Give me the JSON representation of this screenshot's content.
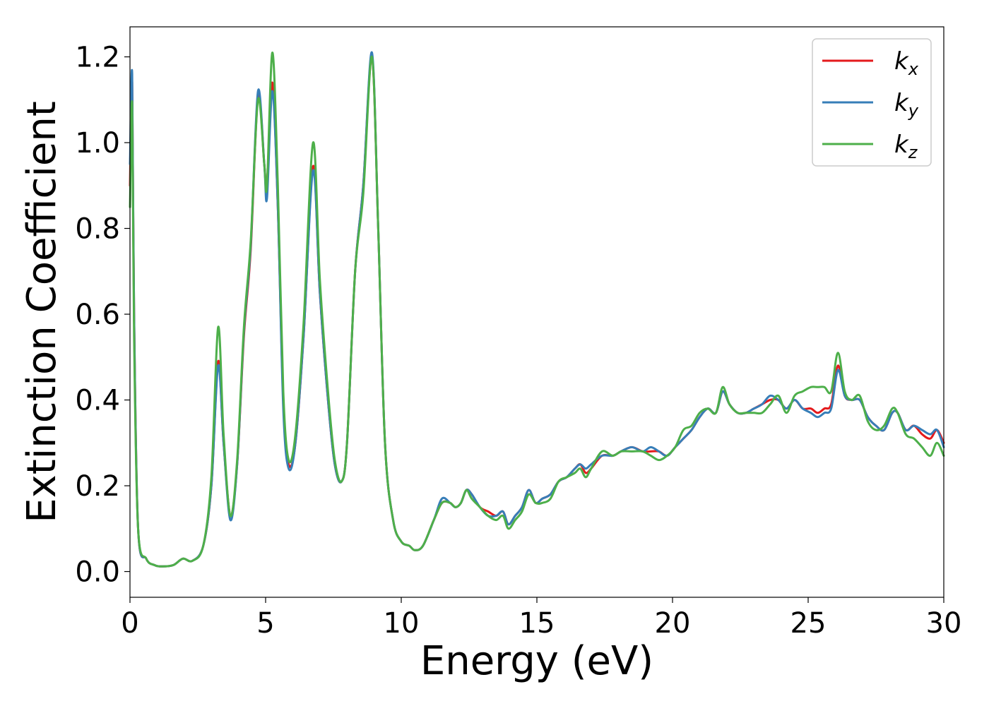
{
  "chart_data": {
    "type": "line",
    "xlabel": "Energy (eV)",
    "ylabel": "Extinction Coefficient",
    "xlim": [
      0,
      30
    ],
    "ylim": [
      -0.06,
      1.27
    ],
    "xticks": [
      0,
      5,
      10,
      15,
      20,
      25,
      30
    ],
    "xtick_labels": [
      "0",
      "5",
      "10",
      "15",
      "20",
      "25",
      "30"
    ],
    "yticks": [
      0.0,
      0.2,
      0.4,
      0.6,
      0.8,
      1.0,
      1.2
    ],
    "ytick_labels": [
      "0.0",
      "0.2",
      "0.4",
      "0.6",
      "0.8",
      "1.0",
      "1.2"
    ],
    "grid": false,
    "legend_position": "top-right",
    "series": [
      {
        "name": "k_x",
        "label_main": "k",
        "label_sub": "x",
        "color": "#e41a1c",
        "x": [
          0,
          0.08,
          0.15,
          0.3,
          0.6,
          0.9,
          1.2,
          1.6,
          1.95,
          2.3,
          2.7,
          3.0,
          3.25,
          3.45,
          3.7,
          3.95,
          4.2,
          4.45,
          4.72,
          4.95,
          5.05,
          5.25,
          5.45,
          5.65,
          5.85,
          6.1,
          6.4,
          6.75,
          7.0,
          7.3,
          7.55,
          7.8,
          8.0,
          8.3,
          8.6,
          8.92,
          9.15,
          9.4,
          9.7,
          10.0,
          10.3,
          10.5,
          10.8,
          11.2,
          11.5,
          11.8,
          12.0,
          12.2,
          12.4,
          12.6,
          12.9,
          13.2,
          13.5,
          13.75,
          13.95,
          14.2,
          14.45,
          14.7,
          14.95,
          15.2,
          15.5,
          15.8,
          16.1,
          16.4,
          16.6,
          16.8,
          17.0,
          17.4,
          17.8,
          18.1,
          18.5,
          18.9,
          19.2,
          19.5,
          19.8,
          20.1,
          20.4,
          20.7,
          21.0,
          21.3,
          21.6,
          21.85,
          22.1,
          22.4,
          22.7,
          23.0,
          23.3,
          23.6,
          23.9,
          24.2,
          24.5,
          24.8,
          25.1,
          25.35,
          25.6,
          25.85,
          26.1,
          26.35,
          26.6,
          26.9,
          27.2,
          27.5,
          27.8,
          28.1,
          28.3,
          28.6,
          28.9,
          29.2,
          29.5,
          29.75,
          30.0
        ],
        "y": [
          0.9,
          1.14,
          0.6,
          0.1,
          0.03,
          0.015,
          0.012,
          0.015,
          0.03,
          0.025,
          0.06,
          0.2,
          0.49,
          0.3,
          0.13,
          0.25,
          0.55,
          0.75,
          1.11,
          0.95,
          0.9,
          1.14,
          0.85,
          0.4,
          0.25,
          0.3,
          0.55,
          0.945,
          0.65,
          0.4,
          0.25,
          0.21,
          0.3,
          0.7,
          0.9,
          1.2,
          0.8,
          0.3,
          0.12,
          0.07,
          0.06,
          0.05,
          0.06,
          0.12,
          0.16,
          0.16,
          0.15,
          0.16,
          0.19,
          0.18,
          0.15,
          0.14,
          0.13,
          0.14,
          0.11,
          0.13,
          0.15,
          0.19,
          0.16,
          0.17,
          0.18,
          0.21,
          0.22,
          0.24,
          0.25,
          0.23,
          0.24,
          0.27,
          0.27,
          0.28,
          0.29,
          0.28,
          0.28,
          0.28,
          0.27,
          0.29,
          0.31,
          0.33,
          0.36,
          0.38,
          0.37,
          0.42,
          0.39,
          0.37,
          0.37,
          0.38,
          0.39,
          0.4,
          0.4,
          0.38,
          0.4,
          0.38,
          0.38,
          0.37,
          0.38,
          0.39,
          0.48,
          0.41,
          0.4,
          0.4,
          0.36,
          0.34,
          0.33,
          0.37,
          0.37,
          0.33,
          0.34,
          0.32,
          0.31,
          0.33,
          0.3
        ]
      },
      {
        "name": "k_y",
        "label_main": "k",
        "label_sub": "y",
        "color": "#377eb8",
        "x": [
          0,
          0.08,
          0.15,
          0.3,
          0.6,
          0.9,
          1.2,
          1.6,
          1.95,
          2.3,
          2.7,
          3.0,
          3.25,
          3.45,
          3.7,
          3.95,
          4.2,
          4.45,
          4.72,
          4.95,
          5.05,
          5.25,
          5.45,
          5.65,
          5.85,
          6.1,
          6.4,
          6.75,
          7.0,
          7.3,
          7.55,
          7.8,
          8.0,
          8.3,
          8.6,
          8.92,
          9.15,
          9.4,
          9.7,
          10.0,
          10.3,
          10.5,
          10.8,
          11.2,
          11.5,
          11.8,
          12.0,
          12.2,
          12.4,
          12.6,
          12.9,
          13.2,
          13.5,
          13.75,
          13.95,
          14.2,
          14.45,
          14.7,
          14.95,
          15.2,
          15.5,
          15.8,
          16.1,
          16.4,
          16.6,
          16.8,
          17.0,
          17.4,
          17.8,
          18.1,
          18.5,
          18.9,
          19.2,
          19.5,
          19.8,
          20.1,
          20.4,
          20.7,
          21.0,
          21.3,
          21.6,
          21.85,
          22.1,
          22.4,
          22.7,
          23.0,
          23.3,
          23.6,
          23.9,
          24.2,
          24.5,
          24.8,
          25.1,
          25.35,
          25.6,
          25.85,
          26.1,
          26.35,
          26.6,
          26.9,
          27.2,
          27.5,
          27.8,
          28.1,
          28.3,
          28.6,
          28.9,
          29.2,
          29.5,
          29.75,
          30.0
        ],
        "y": [
          0.95,
          1.16,
          0.6,
          0.1,
          0.03,
          0.015,
          0.012,
          0.015,
          0.03,
          0.025,
          0.06,
          0.2,
          0.48,
          0.3,
          0.12,
          0.25,
          0.56,
          0.76,
          1.12,
          0.95,
          0.87,
          1.12,
          0.85,
          0.38,
          0.24,
          0.3,
          0.55,
          0.935,
          0.65,
          0.4,
          0.25,
          0.21,
          0.3,
          0.7,
          0.9,
          1.21,
          0.8,
          0.3,
          0.12,
          0.07,
          0.06,
          0.05,
          0.06,
          0.12,
          0.17,
          0.16,
          0.15,
          0.16,
          0.19,
          0.18,
          0.15,
          0.13,
          0.13,
          0.14,
          0.11,
          0.13,
          0.15,
          0.19,
          0.16,
          0.17,
          0.18,
          0.21,
          0.22,
          0.24,
          0.25,
          0.24,
          0.25,
          0.27,
          0.27,
          0.28,
          0.29,
          0.28,
          0.29,
          0.28,
          0.27,
          0.29,
          0.31,
          0.33,
          0.36,
          0.38,
          0.37,
          0.42,
          0.39,
          0.37,
          0.37,
          0.38,
          0.39,
          0.41,
          0.4,
          0.38,
          0.4,
          0.38,
          0.37,
          0.36,
          0.37,
          0.38,
          0.47,
          0.41,
          0.4,
          0.4,
          0.36,
          0.34,
          0.33,
          0.37,
          0.37,
          0.33,
          0.34,
          0.33,
          0.32,
          0.33,
          0.29
        ]
      },
      {
        "name": "k_z",
        "label_main": "k",
        "label_sub": "z",
        "color": "#4daf4a",
        "x": [
          0,
          0.08,
          0.15,
          0.3,
          0.6,
          0.9,
          1.2,
          1.6,
          1.95,
          2.3,
          2.7,
          3.0,
          3.25,
          3.45,
          3.7,
          3.95,
          4.2,
          4.45,
          4.72,
          4.95,
          5.05,
          5.25,
          5.45,
          5.65,
          5.85,
          6.1,
          6.4,
          6.75,
          7.0,
          7.3,
          7.55,
          7.8,
          8.0,
          8.3,
          8.6,
          8.92,
          9.15,
          9.4,
          9.7,
          10.0,
          10.3,
          10.5,
          10.8,
          11.2,
          11.5,
          11.8,
          12.0,
          12.2,
          12.4,
          12.6,
          12.9,
          13.2,
          13.5,
          13.75,
          13.95,
          14.2,
          14.45,
          14.7,
          14.95,
          15.2,
          15.5,
          15.8,
          16.1,
          16.4,
          16.6,
          16.8,
          17.0,
          17.4,
          17.8,
          18.1,
          18.5,
          18.9,
          19.2,
          19.5,
          19.8,
          20.1,
          20.4,
          20.7,
          21.0,
          21.3,
          21.6,
          21.85,
          22.1,
          22.4,
          22.7,
          23.0,
          23.3,
          23.6,
          23.9,
          24.2,
          24.5,
          24.8,
          25.1,
          25.35,
          25.6,
          25.85,
          26.1,
          26.35,
          26.6,
          26.9,
          27.2,
          27.5,
          27.8,
          28.1,
          28.3,
          28.6,
          28.9,
          29.2,
          29.5,
          29.75,
          30.0
        ],
        "y": [
          0.85,
          1.09,
          0.55,
          0.1,
          0.03,
          0.015,
          0.012,
          0.015,
          0.03,
          0.025,
          0.06,
          0.22,
          0.57,
          0.32,
          0.13,
          0.26,
          0.57,
          0.77,
          1.1,
          0.95,
          0.9,
          1.21,
          0.9,
          0.42,
          0.26,
          0.32,
          0.58,
          1.0,
          0.68,
          0.42,
          0.26,
          0.21,
          0.3,
          0.7,
          0.88,
          1.2,
          0.8,
          0.3,
          0.12,
          0.07,
          0.06,
          0.05,
          0.06,
          0.12,
          0.16,
          0.16,
          0.15,
          0.16,
          0.19,
          0.17,
          0.15,
          0.13,
          0.12,
          0.13,
          0.1,
          0.12,
          0.14,
          0.18,
          0.16,
          0.16,
          0.17,
          0.21,
          0.22,
          0.23,
          0.24,
          0.22,
          0.24,
          0.28,
          0.27,
          0.28,
          0.28,
          0.28,
          0.27,
          0.26,
          0.27,
          0.29,
          0.33,
          0.34,
          0.37,
          0.38,
          0.37,
          0.43,
          0.39,
          0.37,
          0.37,
          0.37,
          0.37,
          0.39,
          0.41,
          0.37,
          0.41,
          0.42,
          0.43,
          0.43,
          0.43,
          0.42,
          0.51,
          0.42,
          0.4,
          0.41,
          0.35,
          0.33,
          0.34,
          0.38,
          0.37,
          0.32,
          0.31,
          0.29,
          0.27,
          0.3,
          0.27
        ]
      }
    ]
  }
}
